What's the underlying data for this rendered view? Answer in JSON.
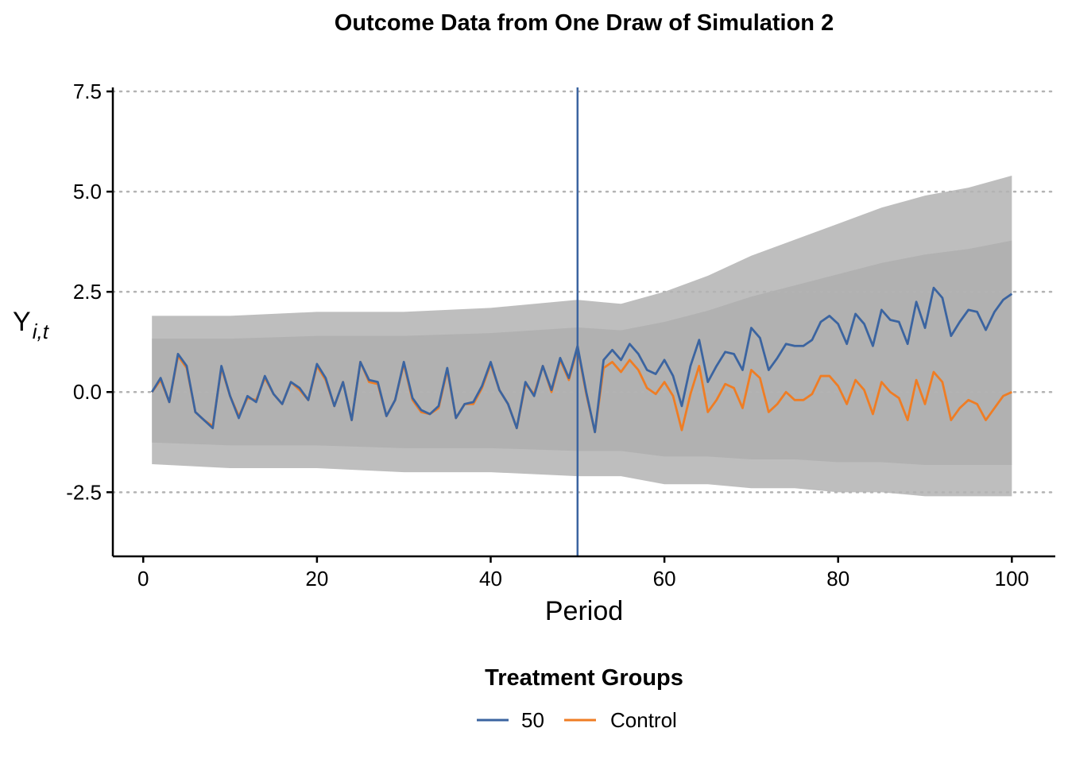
{
  "chart_data": {
    "type": "line",
    "title": "Outcome Data from One Draw of Simulation 2",
    "xlabel": "Period",
    "ylabel": "Y",
    "ylabel_subscript": "i,t",
    "xlim": [
      -3.5,
      105
    ],
    "ylim": [
      -4.1,
      7.6
    ],
    "x_ticks": [
      0,
      20,
      40,
      60,
      80,
      100
    ],
    "x_tick_labels": [
      "0",
      "20",
      "40",
      "60",
      "80",
      "100"
    ],
    "y_ticks": [
      7.5,
      5.0,
      2.5,
      0.0,
      -2.5
    ],
    "y_tick_labels": [
      "7.5",
      "5.0",
      "2.5",
      "0.0",
      "-2.5"
    ],
    "grid": "horizontal dotted",
    "treatment_period": 50,
    "background_band": {
      "color": "#b3b3b3",
      "periods": [
        1,
        10,
        20,
        30,
        40,
        50,
        55,
        60,
        65,
        70,
        75,
        80,
        85,
        90,
        95,
        100
      ],
      "upper": [
        1.9,
        1.9,
        2.0,
        2.0,
        2.1,
        2.3,
        2.2,
        2.5,
        2.9,
        3.4,
        3.8,
        4.2,
        4.6,
        4.9,
        5.1,
        5.4
      ],
      "lower": [
        -1.8,
        -1.9,
        -1.9,
        -2.0,
        -2.0,
        -2.1,
        -2.1,
        -2.3,
        -2.3,
        -2.4,
        -2.4,
        -2.5,
        -2.5,
        -2.6,
        -2.6,
        -2.6
      ]
    },
    "periods": [
      1,
      2,
      3,
      4,
      5,
      6,
      7,
      8,
      9,
      10,
      11,
      12,
      13,
      14,
      15,
      16,
      17,
      18,
      19,
      20,
      21,
      22,
      23,
      24,
      25,
      26,
      27,
      28,
      29,
      30,
      31,
      32,
      33,
      34,
      35,
      36,
      37,
      38,
      39,
      40,
      41,
      42,
      43,
      44,
      45,
      46,
      47,
      48,
      49,
      50,
      51,
      52,
      53,
      54,
      55,
      56,
      57,
      58,
      59,
      60,
      61,
      62,
      63,
      64,
      65,
      66,
      67,
      68,
      69,
      70,
      71,
      72,
      73,
      74,
      75,
      76,
      77,
      78,
      79,
      80,
      81,
      82,
      83,
      84,
      85,
      86,
      87,
      88,
      89,
      90,
      91,
      92,
      93,
      94,
      95,
      96,
      97,
      98,
      99,
      100
    ],
    "series": [
      {
        "name": "50",
        "color": "#3b64a0",
        "values": [
          0.0,
          0.35,
          -0.25,
          0.95,
          0.65,
          -0.5,
          -0.7,
          -0.9,
          0.65,
          -0.1,
          -0.65,
          -0.1,
          -0.25,
          0.4,
          -0.05,
          -0.3,
          0.25,
          0.1,
          -0.2,
          0.7,
          0.35,
          -0.35,
          0.25,
          -0.7,
          0.75,
          0.3,
          0.25,
          -0.6,
          -0.2,
          0.75,
          -0.15,
          -0.45,
          -0.55,
          -0.35,
          0.6,
          -0.65,
          -0.3,
          -0.25,
          0.15,
          0.75,
          0.05,
          -0.3,
          -0.9,
          0.25,
          -0.1,
          0.65,
          0.05,
          0.85,
          0.35,
          1.15,
          0.0,
          -1.0,
          0.8,
          1.05,
          0.8,
          1.2,
          0.95,
          0.55,
          0.45,
          0.8,
          0.4,
          -0.35,
          0.65,
          1.3,
          0.25,
          0.65,
          1.0,
          0.95,
          0.55,
          1.6,
          1.35,
          0.55,
          0.85,
          1.2,
          1.15,
          1.15,
          1.3,
          1.75,
          1.9,
          1.7,
          1.2,
          1.95,
          1.7,
          1.15,
          2.05,
          1.8,
          1.75,
          1.2,
          2.25,
          1.6,
          2.6,
          2.35,
          1.4,
          1.75,
          2.05,
          2.0,
          1.55,
          2.0,
          2.3,
          2.45
        ]
      },
      {
        "name": "Control",
        "color": "#ef7d24",
        "values": [
          0.0,
          0.3,
          -0.25,
          0.9,
          0.6,
          -0.5,
          -0.7,
          -0.85,
          0.6,
          -0.1,
          -0.6,
          -0.15,
          -0.2,
          0.35,
          -0.05,
          -0.3,
          0.25,
          0.05,
          -0.2,
          0.65,
          0.3,
          -0.35,
          0.25,
          -0.7,
          0.75,
          0.25,
          0.2,
          -0.6,
          -0.2,
          0.7,
          -0.2,
          -0.5,
          -0.55,
          -0.4,
          0.55,
          -0.65,
          -0.3,
          -0.3,
          0.1,
          0.7,
          0.05,
          -0.3,
          -0.9,
          0.2,
          -0.05,
          0.65,
          0.0,
          0.8,
          0.3,
          1.1,
          -0.05,
          -1.0,
          0.6,
          0.75,
          0.5,
          0.8,
          0.55,
          0.1,
          -0.05,
          0.25,
          -0.1,
          -0.95,
          -0.05,
          0.65,
          -0.5,
          -0.2,
          0.2,
          0.1,
          -0.4,
          0.55,
          0.35,
          -0.5,
          -0.3,
          0.0,
          -0.2,
          -0.2,
          -0.05,
          0.4,
          0.4,
          0.15,
          -0.3,
          0.3,
          0.05,
          -0.55,
          0.25,
          0.0,
          -0.15,
          -0.7,
          0.3,
          -0.3,
          0.5,
          0.25,
          -0.7,
          -0.4,
          -0.2,
          -0.3,
          -0.7,
          -0.4,
          -0.1,
          0.0
        ]
      }
    ],
    "legend": {
      "title": "Treatment Groups",
      "position": "bottom",
      "entries": [
        "50",
        "Control"
      ]
    },
    "vline_color": "#3b64a0",
    "grid_color": "#b3b3b3"
  }
}
